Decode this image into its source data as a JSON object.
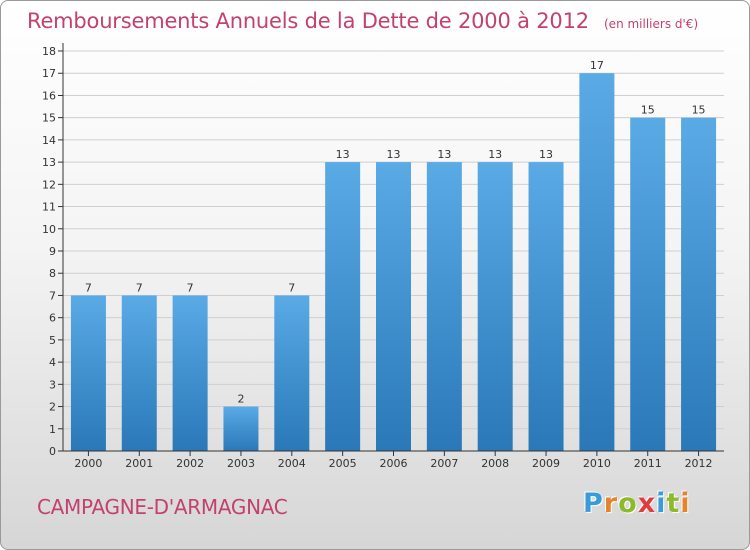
{
  "header": {
    "title": "Remboursements Annuels de la Dette de 2000 à 2012",
    "unit": "(en milliers d'€)"
  },
  "footer": {
    "commune": "CAMPAGNE-D'ARMAGNAC",
    "brand": "Proxiti",
    "brand_letters": [
      {
        "char": "P",
        "color": "#3a9bd9"
      },
      {
        "char": "r",
        "color": "#e7832b"
      },
      {
        "char": "o",
        "color": "#8bbb2a"
      },
      {
        "char": "x",
        "color": "#e03c3c"
      },
      {
        "char": "i",
        "color": "#3a9bd9"
      },
      {
        "char": "t",
        "color": "#8bbb2a"
      },
      {
        "char": "i",
        "color": "#e7832b"
      }
    ]
  },
  "colors": {
    "title": "#c2416f",
    "bar_top": "#5aaae6",
    "bar_bottom": "#2a78b8",
    "axis": "#333333",
    "grid": "#cfcfcf"
  },
  "chart_data": {
    "type": "bar",
    "title": "Remboursements Annuels de la Dette de 2000 à 2012",
    "categories": [
      "2000",
      "2001",
      "2002",
      "2003",
      "2004",
      "2005",
      "2006",
      "2007",
      "2008",
      "2009",
      "2010",
      "2011",
      "2012"
    ],
    "values": [
      7,
      7,
      7,
      2,
      7,
      13,
      13,
      13,
      13,
      13,
      17,
      15,
      15
    ],
    "data_labels": [
      "7",
      "7",
      "7",
      "2",
      "7",
      "13",
      "13",
      "13",
      "13",
      "13",
      "17",
      "15",
      "15"
    ],
    "y_ticks": [
      0,
      1,
      2,
      3,
      4,
      5,
      6,
      7,
      8,
      9,
      10,
      11,
      12,
      13,
      14,
      15,
      16,
      17,
      18
    ],
    "ylim": [
      0,
      18
    ],
    "xlabel": "",
    "ylabel": "",
    "grid": true
  }
}
